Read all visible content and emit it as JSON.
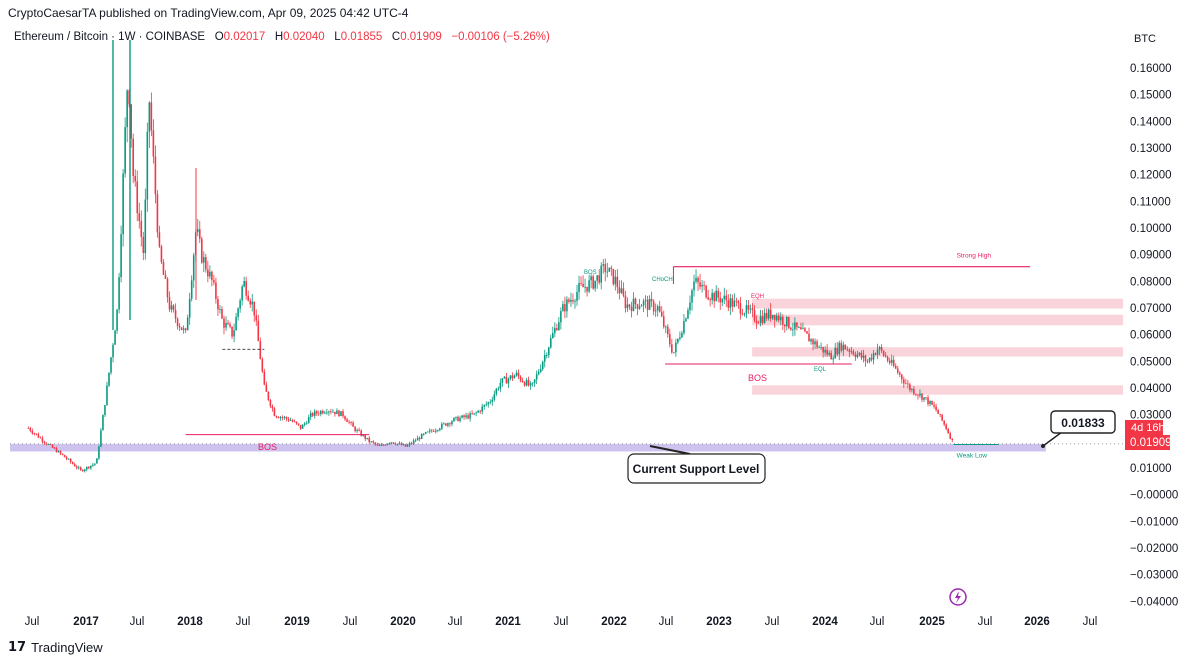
{
  "header": {
    "published": "CryptoCaesarTA published on TradingView.com, Apr 09, 2025 04:42 UTC-4"
  },
  "legend": {
    "symbol": "Ethereum / Bitcoin · 1W · COINBASE",
    "o_label": "O",
    "o_value": "0.02017",
    "h_label": "H",
    "h_value": "0.02040",
    "l_label": "L",
    "l_value": "0.01855",
    "c_label": "C",
    "c_value": "0.01909",
    "change": "−0.00106 (−5.26%)"
  },
  "footer": {
    "brand": "TradingView",
    "logo": "17"
  },
  "chart_data": {
    "type": "candlestick",
    "currency": "BTC",
    "ylim": [
      -0.045,
      0.17
    ],
    "y_ticks": [
      "0.16000",
      "0.15000",
      "0.14000",
      "0.13000",
      "0.12000",
      "0.11000",
      "0.10000",
      "0.09000",
      "0.08000",
      "0.07000",
      "0.06000",
      "0.05000",
      "0.04000",
      "0.03000",
      "0.01000",
      "−0.00000",
      "−0.01000",
      "−0.02000",
      "−0.03000",
      "−0.04000"
    ],
    "x_ticks": [
      "Jul",
      "2017",
      "Jul",
      "2018",
      "Jul",
      "2019",
      "Jul",
      "2020",
      "Jul",
      "2021",
      "Jul",
      "2022",
      "Jul",
      "2023",
      "Jul",
      "2024",
      "Jul",
      "2025",
      "Jul",
      "2026",
      "Jul"
    ],
    "bold_x_ticks": [
      "2017",
      "2018",
      "2019",
      "2020",
      "2021",
      "2022",
      "2023",
      "2024",
      "2025",
      "2026"
    ],
    "price_path": [
      [
        2016.45,
        0.025
      ],
      [
        2016.6,
        0.02
      ],
      [
        2016.8,
        0.014
      ],
      [
        2016.95,
        0.009
      ],
      [
        2017.1,
        0.012
      ],
      [
        2017.2,
        0.04
      ],
      [
        2017.3,
        0.07
      ],
      [
        2017.4,
        0.16
      ],
      [
        2017.45,
        0.12
      ],
      [
        2017.55,
        0.09
      ],
      [
        2017.6,
        0.15
      ],
      [
        2017.7,
        0.09
      ],
      [
        2017.8,
        0.07
      ],
      [
        2017.95,
        0.06
      ],
      [
        2018.05,
        0.1
      ],
      [
        2018.1,
        0.09
      ],
      [
        2018.2,
        0.08
      ],
      [
        2018.3,
        0.065
      ],
      [
        2018.4,
        0.06
      ],
      [
        2018.5,
        0.08
      ],
      [
        2018.6,
        0.07
      ],
      [
        2018.7,
        0.04
      ],
      [
        2018.8,
        0.03
      ],
      [
        2018.95,
        0.028
      ],
      [
        2019.05,
        0.025
      ],
      [
        2019.15,
        0.03
      ],
      [
        2019.3,
        0.032
      ],
      [
        2019.45,
        0.03
      ],
      [
        2019.55,
        0.025
      ],
      [
        2019.7,
        0.02
      ],
      [
        2019.8,
        0.018
      ],
      [
        2019.9,
        0.02
      ],
      [
        2020.05,
        0.018
      ],
      [
        2020.2,
        0.022
      ],
      [
        2020.35,
        0.025
      ],
      [
        2020.5,
        0.028
      ],
      [
        2020.7,
        0.03
      ],
      [
        2020.85,
        0.035
      ],
      [
        2020.95,
        0.042
      ],
      [
        2021.1,
        0.045
      ],
      [
        2021.25,
        0.04
      ],
      [
        2021.35,
        0.05
      ],
      [
        2021.45,
        0.06
      ],
      [
        2021.55,
        0.07
      ],
      [
        2021.7,
        0.077
      ],
      [
        2021.85,
        0.08
      ],
      [
        2021.95,
        0.085
      ],
      [
        2022.05,
        0.08
      ],
      [
        2022.15,
        0.071
      ],
      [
        2022.3,
        0.072
      ],
      [
        2022.45,
        0.07
      ],
      [
        2022.6,
        0.053
      ],
      [
        2022.7,
        0.065
      ],
      [
        2022.8,
        0.08
      ],
      [
        2022.95,
        0.075
      ],
      [
        2023.1,
        0.073
      ],
      [
        2023.25,
        0.07
      ],
      [
        2023.4,
        0.066
      ],
      [
        2023.55,
        0.068
      ],
      [
        2023.7,
        0.064
      ],
      [
        2023.85,
        0.06
      ],
      [
        2024.0,
        0.055
      ],
      [
        2024.1,
        0.052
      ],
      [
        2024.2,
        0.056
      ],
      [
        2024.3,
        0.054
      ],
      [
        2024.45,
        0.05
      ],
      [
        2024.55,
        0.055
      ],
      [
        2024.7,
        0.048
      ],
      [
        2024.85,
        0.04
      ],
      [
        2025.0,
        0.036
      ],
      [
        2025.1,
        0.032
      ],
      [
        2025.2,
        0.025
      ],
      [
        2025.27,
        0.019
      ]
    ],
    "annotations": [
      {
        "label": "Strong High",
        "color": "#e91e63",
        "price": 0.0855,
        "from": 2022.6,
        "to": 2026.0
      },
      {
        "label": "Weak Low",
        "color": "#089981",
        "price": 0.0185,
        "from": 2025.27,
        "to": 2025.7
      },
      {
        "label": "BOS",
        "color": "#e91e63",
        "price": 0.0185
      },
      {
        "label": "BOS",
        "color": "#e91e63",
        "price": 0.042
      },
      {
        "label": "EQH",
        "color": "#e91e63",
        "price": 0.072
      },
      {
        "label": "CHoCH",
        "color": "#089981",
        "price": 0.083
      },
      {
        "label": "EQL",
        "color": "#089981",
        "price": 0.047
      },
      {
        "label": "BOS",
        "color": "#089981",
        "price": 0.083
      }
    ],
    "zones": [
      {
        "from": 0.0698,
        "to": 0.0735,
        "color": "#f7c5cf",
        "label": ""
      },
      {
        "from": 0.0635,
        "to": 0.0675,
        "color": "#f7c5cf",
        "label": ""
      },
      {
        "from": 0.0518,
        "to": 0.0553,
        "color": "#f7c5cf",
        "label": ""
      },
      {
        "from": 0.0375,
        "to": 0.041,
        "color": "#f7c5cf",
        "label": ""
      },
      {
        "from": 0.0162,
        "to": 0.019,
        "color": "#c5b8ec",
        "label": "Current Support Level"
      }
    ],
    "callouts": [
      {
        "label": "Current Support Level"
      },
      {
        "label": "0.01833"
      }
    ],
    "price_tags": [
      {
        "label": "4d 16h",
        "color": "#f23645"
      },
      {
        "label": "0.01909",
        "color": "#f23645"
      }
    ],
    "grid": false,
    "colors": {
      "up": "#089981",
      "down": "#f23645",
      "support_zone": "#c5b8ec",
      "supply_zone": "#f7c5cf",
      "structure": "#e91e63"
    }
  }
}
